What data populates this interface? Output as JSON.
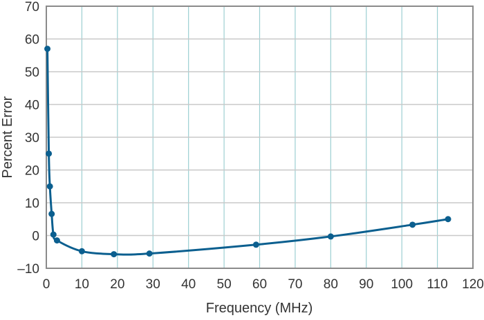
{
  "chart_data": {
    "type": "line",
    "title": "",
    "xlabel": "Frequency (MHz)",
    "ylabel": "Percent Error",
    "xlim": [
      0,
      120
    ],
    "ylim": [
      -10,
      70
    ],
    "x_ticks": [
      0,
      10,
      20,
      30,
      40,
      50,
      60,
      70,
      80,
      90,
      100,
      110,
      120
    ],
    "y_ticks": [
      -10,
      0,
      10,
      20,
      30,
      40,
      50,
      60,
      70
    ],
    "x_tick_labels": [
      "0",
      "10",
      "20",
      "30",
      "40",
      "50",
      "60",
      "70",
      "80",
      "90",
      "100",
      "110",
      "120"
    ],
    "y_tick_labels": [
      "–10",
      "0",
      "10",
      "20",
      "30",
      "40",
      "50",
      "60",
      "70"
    ],
    "grid": true,
    "legend": null,
    "series": [
      {
        "name": "Percent Error",
        "color": "#0b5f8f",
        "x": [
          0.3,
          0.7,
          1.0,
          1.5,
          2.0,
          3.0,
          10,
          19,
          29,
          59,
          80,
          103,
          113
        ],
        "y": [
          57,
          25,
          15,
          6.6,
          0.3,
          -1.5,
          -4.8,
          -5.7,
          -5.5,
          -2.8,
          -0.3,
          3.3,
          5.0
        ]
      }
    ]
  },
  "colors": {
    "line": "#0b5f8f",
    "grid_vertical": "#9ccfd2",
    "grid_horizontal": "#c8c8c8",
    "axis": "#8a8a8a"
  }
}
